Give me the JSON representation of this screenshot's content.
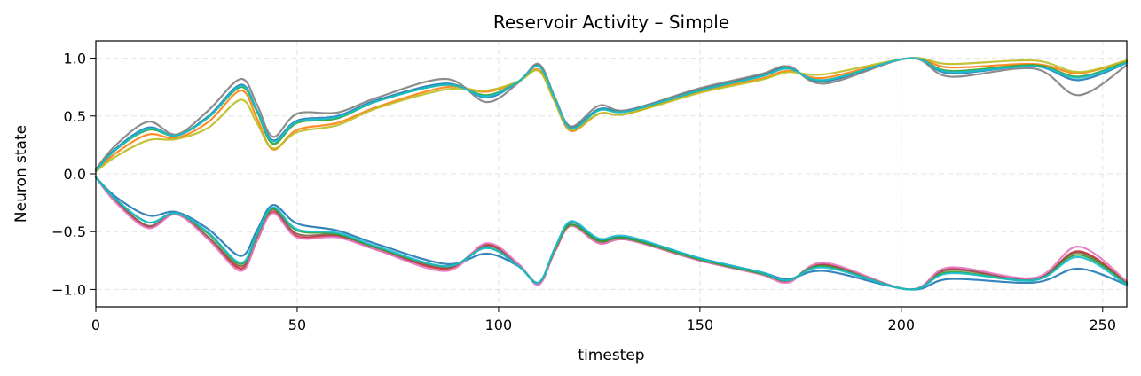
{
  "chart_data": {
    "type": "line",
    "title": "Reservoir Activity – Simple",
    "xlabel": "timestep",
    "ylabel": "Neuron state",
    "xlim": [
      0,
      256
    ],
    "ylim": [
      -1.15,
      1.15
    ],
    "x_ticks": [
      0,
      50,
      100,
      150,
      200,
      250
    ],
    "x_tick_labels": [
      "0",
      "50",
      "100",
      "150",
      "200",
      "250"
    ],
    "y_ticks": [
      -1.0,
      -0.5,
      0.0,
      0.5,
      1.0
    ],
    "y_tick_labels": [
      "−1.0",
      "−0.5",
      "0.0",
      "0.5",
      "1.0"
    ],
    "grid": true,
    "x": [
      0,
      5,
      13,
      20,
      28,
      36,
      40,
      44,
      50,
      60,
      70,
      87,
      97,
      105,
      110,
      114,
      118,
      125,
      132,
      150,
      165,
      172,
      181,
      202,
      212,
      233,
      244,
      256
    ],
    "series": [
      {
        "color": "#1f77b4",
        "values": [
          0.03,
          0.22,
          0.4,
          0.33,
          0.5,
          0.77,
          0.55,
          0.29,
          0.46,
          0.5,
          0.64,
          0.78,
          0.66,
          0.8,
          0.94,
          0.65,
          0.4,
          0.56,
          0.55,
          0.73,
          0.85,
          0.92,
          0.8,
          1.0,
          0.87,
          0.93,
          0.81,
          0.96
        ]
      },
      {
        "color": "#ff7f0e",
        "values": [
          0.02,
          0.18,
          0.34,
          0.31,
          0.45,
          0.72,
          0.48,
          0.21,
          0.38,
          0.44,
          0.58,
          0.75,
          0.71,
          0.8,
          0.9,
          0.62,
          0.37,
          0.52,
          0.52,
          0.71,
          0.82,
          0.89,
          0.83,
          1.0,
          0.92,
          0.95,
          0.87,
          0.98
        ]
      },
      {
        "color": "#2ca02c",
        "values": [
          0.03,
          0.21,
          0.38,
          0.33,
          0.49,
          0.75,
          0.54,
          0.26,
          0.44,
          0.48,
          0.63,
          0.77,
          0.68,
          0.8,
          0.93,
          0.64,
          0.39,
          0.55,
          0.54,
          0.72,
          0.84,
          0.91,
          0.81,
          1.0,
          0.89,
          0.94,
          0.84,
          0.97
        ]
      },
      {
        "color": "#7f7f7f",
        "values": [
          0.04,
          0.25,
          0.45,
          0.34,
          0.55,
          0.82,
          0.6,
          0.32,
          0.52,
          0.53,
          0.66,
          0.82,
          0.62,
          0.79,
          0.95,
          0.66,
          0.41,
          0.59,
          0.55,
          0.74,
          0.86,
          0.93,
          0.78,
          1.0,
          0.84,
          0.91,
          0.68,
          0.94
        ]
      },
      {
        "color": "#bcbd22",
        "values": [
          0.02,
          0.15,
          0.29,
          0.3,
          0.4,
          0.64,
          0.44,
          0.22,
          0.36,
          0.42,
          0.57,
          0.73,
          0.72,
          0.8,
          0.89,
          0.62,
          0.38,
          0.52,
          0.52,
          0.7,
          0.81,
          0.88,
          0.86,
          1.0,
          0.95,
          0.98,
          0.88,
          0.98
        ]
      },
      {
        "color": "#17becf",
        "values": [
          0.03,
          0.21,
          0.39,
          0.33,
          0.49,
          0.76,
          0.55,
          0.28,
          0.45,
          0.49,
          0.63,
          0.77,
          0.67,
          0.8,
          0.93,
          0.65,
          0.39,
          0.55,
          0.54,
          0.72,
          0.84,
          0.91,
          0.81,
          1.0,
          0.88,
          0.93,
          0.83,
          0.96
        ]
      },
      {
        "color": "#1f77b4",
        "values": [
          -0.03,
          -0.2,
          -0.36,
          -0.33,
          -0.48,
          -0.71,
          -0.49,
          -0.27,
          -0.43,
          -0.49,
          -0.61,
          -0.78,
          -0.69,
          -0.8,
          -0.94,
          -0.66,
          -0.42,
          -0.57,
          -0.55,
          -0.73,
          -0.85,
          -0.91,
          -0.84,
          -1.0,
          -0.91,
          -0.94,
          -0.82,
          -0.96
        ]
      },
      {
        "color": "#d62728",
        "values": [
          -0.03,
          -0.24,
          -0.46,
          -0.35,
          -0.56,
          -0.82,
          -0.58,
          -0.33,
          -0.54,
          -0.54,
          -0.66,
          -0.82,
          -0.61,
          -0.79,
          -0.95,
          -0.67,
          -0.45,
          -0.6,
          -0.57,
          -0.75,
          -0.86,
          -0.93,
          -0.78,
          -1.0,
          -0.82,
          -0.91,
          -0.67,
          -0.94
        ]
      },
      {
        "color": "#8c564b",
        "values": [
          -0.03,
          -0.23,
          -0.45,
          -0.34,
          -0.55,
          -0.8,
          -0.56,
          -0.31,
          -0.52,
          -0.53,
          -0.65,
          -0.81,
          -0.62,
          -0.79,
          -0.95,
          -0.66,
          -0.44,
          -0.59,
          -0.56,
          -0.75,
          -0.86,
          -0.93,
          -0.79,
          -1.0,
          -0.83,
          -0.91,
          -0.68,
          -0.95
        ]
      },
      {
        "color": "#e377c2",
        "values": [
          -0.03,
          -0.25,
          -0.47,
          -0.35,
          -0.57,
          -0.84,
          -0.58,
          -0.34,
          -0.55,
          -0.55,
          -0.66,
          -0.84,
          -0.6,
          -0.78,
          -0.96,
          -0.66,
          -0.45,
          -0.6,
          -0.57,
          -0.75,
          -0.87,
          -0.94,
          -0.77,
          -1.0,
          -0.81,
          -0.9,
          -0.63,
          -0.93
        ]
      },
      {
        "color": "#2ca02c",
        "values": [
          -0.03,
          -0.22,
          -0.42,
          -0.34,
          -0.52,
          -0.78,
          -0.53,
          -0.3,
          -0.49,
          -0.52,
          -0.64,
          -0.8,
          -0.64,
          -0.8,
          -0.94,
          -0.65,
          -0.44,
          -0.58,
          -0.56,
          -0.74,
          -0.86,
          -0.92,
          -0.8,
          -1.0,
          -0.85,
          -0.92,
          -0.7,
          -0.95
        ]
      },
      {
        "color": "#17becf",
        "values": [
          -0.03,
          -0.22,
          -0.42,
          -0.34,
          -0.51,
          -0.77,
          -0.52,
          -0.29,
          -0.48,
          -0.51,
          -0.63,
          -0.8,
          -0.64,
          -0.8,
          -0.94,
          -0.64,
          -0.41,
          -0.56,
          -0.54,
          -0.73,
          -0.85,
          -0.92,
          -0.81,
          -1.0,
          -0.86,
          -0.92,
          -0.72,
          -0.96
        ]
      }
    ]
  }
}
